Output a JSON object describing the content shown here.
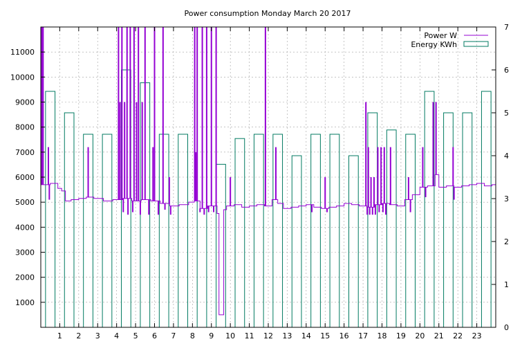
{
  "chart_data": {
    "type": "line",
    "title": "Power consumption Monday March 20 2017",
    "xlabel": "",
    "ylabel": "",
    "xlim": [
      0,
      24
    ],
    "ylim": [
      0,
      12000
    ],
    "y2lim": [
      0,
      7
    ],
    "x_ticks": [
      1,
      2,
      3,
      4,
      5,
      6,
      7,
      8,
      9,
      10,
      11,
      12,
      13,
      14,
      15,
      16,
      17,
      18,
      19,
      20,
      21,
      22,
      23
    ],
    "y_ticks": [
      1000,
      2000,
      3000,
      4000,
      5000,
      6000,
      7000,
      8000,
      9000,
      10000,
      11000
    ],
    "y2_ticks": [
      0,
      1,
      2,
      3,
      4,
      5,
      6,
      7
    ],
    "grid": true,
    "legend_position": "top-right",
    "series": [
      {
        "name": "Power W",
        "axis": "y",
        "color": "#9400D3",
        "style": "steps",
        "base_profile": [
          [
            0.0,
            5700
          ],
          [
            0.5,
            5750
          ],
          [
            0.9,
            5550
          ],
          [
            1.1,
            5450
          ],
          [
            1.3,
            5050
          ],
          [
            1.6,
            5100
          ],
          [
            2.0,
            5150
          ],
          [
            2.4,
            5200
          ],
          [
            2.8,
            5150
          ],
          [
            3.3,
            5050
          ],
          [
            3.8,
            5100
          ],
          [
            4.3,
            5150
          ],
          [
            4.8,
            5050
          ],
          [
            5.3,
            5100
          ],
          [
            5.8,
            5050
          ],
          [
            6.3,
            4950
          ],
          [
            6.8,
            4850
          ],
          [
            7.3,
            4900
          ],
          [
            7.8,
            5000
          ],
          [
            8.1,
            5050
          ],
          [
            8.4,
            4750
          ],
          [
            8.8,
            4850
          ],
          [
            9.3,
            4550
          ],
          [
            9.4,
            500
          ],
          [
            9.65,
            4700
          ],
          [
            9.8,
            4850
          ],
          [
            10.2,
            4900
          ],
          [
            10.6,
            4800
          ],
          [
            11.0,
            4850
          ],
          [
            11.4,
            4900
          ],
          [
            11.8,
            4850
          ],
          [
            12.2,
            5100
          ],
          [
            12.5,
            4950
          ],
          [
            12.8,
            4750
          ],
          [
            13.2,
            4800
          ],
          [
            13.6,
            4850
          ],
          [
            14.0,
            4900
          ],
          [
            14.4,
            4800
          ],
          [
            14.8,
            4750
          ],
          [
            15.2,
            4800
          ],
          [
            15.6,
            4850
          ],
          [
            16.0,
            4950
          ],
          [
            16.4,
            4900
          ],
          [
            16.8,
            4850
          ],
          [
            17.2,
            4800
          ],
          [
            17.6,
            4900
          ],
          [
            18.0,
            4950
          ],
          [
            18.4,
            4900
          ],
          [
            18.8,
            4850
          ],
          [
            19.2,
            5100
          ],
          [
            19.6,
            5300
          ],
          [
            20.0,
            5600
          ],
          [
            20.4,
            5650
          ],
          [
            20.8,
            6100
          ],
          [
            21.0,
            5600
          ],
          [
            21.4,
            5650
          ],
          [
            21.8,
            5600
          ],
          [
            22.2,
            5650
          ],
          [
            22.6,
            5700
          ],
          [
            23.0,
            5750
          ],
          [
            23.4,
            5650
          ],
          [
            23.8,
            5700
          ],
          [
            24.0,
            5700
          ]
        ],
        "spikes": [
          [
            0.05,
            12000
          ],
          [
            0.12,
            12000
          ],
          [
            0.4,
            7200
          ],
          [
            0.45,
            5100
          ],
          [
            2.5,
            7200
          ],
          [
            4.1,
            12000
          ],
          [
            4.18,
            9000
          ],
          [
            4.28,
            12000
          ],
          [
            4.35,
            4600
          ],
          [
            4.42,
            9000
          ],
          [
            4.55,
            12000
          ],
          [
            4.6,
            4500
          ],
          [
            4.72,
            12000
          ],
          [
            4.85,
            4600
          ],
          [
            4.92,
            12000
          ],
          [
            5.05,
            9000
          ],
          [
            5.15,
            12000
          ],
          [
            5.25,
            4500
          ],
          [
            5.35,
            9000
          ],
          [
            5.5,
            12000
          ],
          [
            5.7,
            4500
          ],
          [
            5.92,
            7200
          ],
          [
            6.0,
            12000
          ],
          [
            6.2,
            4500
          ],
          [
            6.45,
            12000
          ],
          [
            6.55,
            4700
          ],
          [
            6.78,
            6000
          ],
          [
            6.85,
            4500
          ],
          [
            8.12,
            12000
          ],
          [
            8.18,
            7000
          ],
          [
            8.25,
            12000
          ],
          [
            8.4,
            4600
          ],
          [
            8.52,
            12000
          ],
          [
            8.62,
            4500
          ],
          [
            8.75,
            12000
          ],
          [
            8.85,
            4600
          ],
          [
            9.0,
            12000
          ],
          [
            9.12,
            4600
          ],
          [
            9.25,
            12000
          ],
          [
            10.0,
            6000
          ],
          [
            11.85,
            12000
          ],
          [
            12.4,
            7200
          ],
          [
            14.3,
            4600
          ],
          [
            15.0,
            6000
          ],
          [
            15.1,
            4600
          ],
          [
            17.15,
            9000
          ],
          [
            17.22,
            4500
          ],
          [
            17.28,
            7200
          ],
          [
            17.35,
            4500
          ],
          [
            17.42,
            6000
          ],
          [
            17.5,
            4500
          ],
          [
            17.58,
            6000
          ],
          [
            17.65,
            4500
          ],
          [
            17.78,
            7200
          ],
          [
            17.85,
            4600
          ],
          [
            17.95,
            7200
          ],
          [
            18.05,
            4600
          ],
          [
            18.12,
            7200
          ],
          [
            18.2,
            4500
          ],
          [
            18.45,
            7200
          ],
          [
            19.4,
            6000
          ],
          [
            19.5,
            4600
          ],
          [
            20.15,
            7200
          ],
          [
            20.3,
            5200
          ],
          [
            20.7,
            9000
          ],
          [
            20.85,
            9000
          ],
          [
            21.75,
            7200
          ],
          [
            21.8,
            5100
          ]
        ]
      },
      {
        "name": "Energy KWh",
        "axis": "y2",
        "color": "#007A60",
        "style": "boxes",
        "box_width": 0.5,
        "bars": [
          [
            0,
            5.5
          ],
          [
            1,
            5.0
          ],
          [
            2,
            4.5
          ],
          [
            3,
            4.5
          ],
          [
            4,
            6.0
          ],
          [
            5,
            5.7
          ],
          [
            6,
            4.5
          ],
          [
            7,
            4.5
          ],
          [
            8,
            7.0
          ],
          [
            9,
            3.8
          ],
          [
            10,
            4.4
          ],
          [
            11,
            4.5
          ],
          [
            12,
            4.5
          ],
          [
            13,
            4.0
          ],
          [
            14,
            4.5
          ],
          [
            15,
            4.5
          ],
          [
            16,
            4.0
          ],
          [
            17,
            5.0
          ],
          [
            18,
            4.6
          ],
          [
            19,
            4.5
          ],
          [
            20,
            5.5
          ],
          [
            21,
            5.0
          ],
          [
            22,
            5.0
          ],
          [
            23,
            5.5
          ]
        ]
      }
    ]
  }
}
